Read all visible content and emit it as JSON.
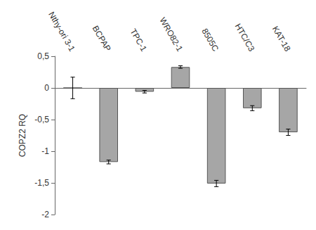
{
  "chart_data": {
    "type": "bar",
    "categories": [
      "Nthy-ori 3-1",
      "BCPAP",
      "TPC-1",
      "WRO82-1",
      "8505C",
      "HTC/C3",
      "KAT-18"
    ],
    "values": [
      0,
      -1.17,
      -0.06,
      0.33,
      -1.51,
      -0.32,
      -0.7
    ],
    "errors": [
      0.17,
      0.03,
      0.02,
      0.02,
      0.05,
      0.04,
      0.05
    ],
    "color": "#a6a6a6",
    "y_label": "COPZ2 RQ",
    "ylim": [
      -2,
      0.5
    ],
    "yticks": [
      -2,
      {
        "value": -1.5,
        "label": "-1,5"
      },
      -1,
      {
        "value": -0.5,
        "label": "-0,5"
      },
      0,
      {
        "value": 0.5,
        "label": "0,5"
      }
    ],
    "grid": false
  }
}
